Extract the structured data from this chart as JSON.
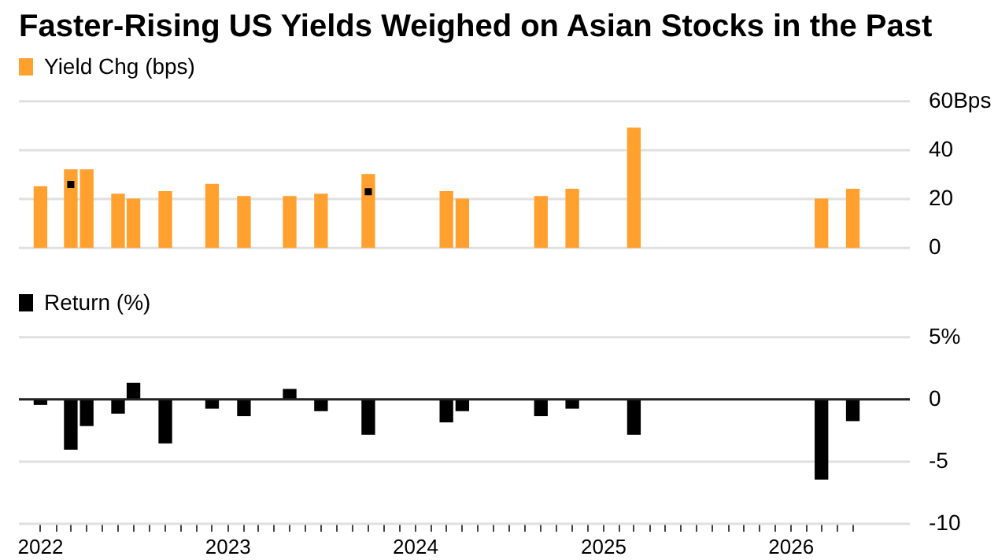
{
  "chart_data": [
    {
      "type": "bar",
      "title": "Faster-Rising US Yields Weighed on Asian Stocks in the Past",
      "x": [
        "2022-01",
        "2022-03",
        "2022-04",
        "2022-06",
        "2022-07",
        "2022-09",
        "2022-12",
        "2023-02",
        "2023-05",
        "2023-07",
        "2023-10",
        "2024-03",
        "2024-04",
        "2024-09",
        "2024-11",
        "2025-03",
        "2026-03",
        "2026-05"
      ],
      "series": [
        {
          "name": "Yield Chg (bps)",
          "color": "#ffa02f",
          "values": [
            25,
            32,
            32,
            22,
            20,
            23,
            26,
            21,
            21,
            22,
            30,
            23,
            20,
            21,
            24,
            49,
            20,
            24
          ]
        },
        {
          "type": "scatter",
          "color": "#000000",
          "values": [
            null,
            26,
            null,
            null,
            null,
            null,
            null,
            null,
            null,
            null,
            23,
            null,
            null,
            null,
            null,
            null,
            null,
            null
          ]
        }
      ],
      "legend": "top left",
      "grid": "y",
      "tick_labels": "y",
      "xlim": [
        "2021-11-20",
        "2026-08-20"
      ],
      "ylim": [
        0,
        60
      ],
      "yticks": [
        0,
        20,
        40,
        {
          "value": 60,
          "label": "60Bps"
        }
      ]
    },
    {
      "type": "bar",
      "x": [
        "2022-01",
        "2022-03",
        "2022-04",
        "2022-06",
        "2022-07",
        "2022-09",
        "2022-12",
        "2023-02",
        "2023-05",
        "2023-07",
        "2023-10",
        "2024-03",
        "2024-04",
        "2024-09",
        "2024-11",
        "2025-03",
        "2026-03",
        "2026-05"
      ],
      "series": [
        {
          "name": "Return (%)",
          "color": "#000000",
          "values": [
            -0.4,
            -4,
            -2.1,
            -1.1,
            1.3,
            -3.5,
            -0.7,
            -1.3,
            0.8,
            -0.9,
            -2.8,
            -1.8,
            -0.9,
            -1.3,
            -0.7,
            -2.8,
            -6.4,
            -1.7
          ]
        }
      ],
      "legend": "top left",
      "grid": "y",
      "ref_lines": [
        {
          "axis": "y",
          "value": 0,
          "color": "#222222"
        }
      ],
      "xlim": [
        "2021-11-20",
        "2026-08-20"
      ],
      "ylim": [
        -10,
        5
      ],
      "yticks": [
        {
          "value": 5,
          "label": "5%"
        },
        0,
        -5,
        -10
      ],
      "xticks": [
        "2022",
        {
          "value": "2022-02",
          "label": null
        },
        {
          "value": "2022-03",
          "label": null
        },
        {
          "value": "2022-04",
          "label": null
        },
        {
          "value": "2022-05",
          "label": null
        },
        {
          "value": "2022-06",
          "label": null
        },
        {
          "value": "2022-07",
          "label": null
        },
        {
          "value": "2022-08",
          "label": null
        },
        {
          "value": "2022-09",
          "label": null
        },
        {
          "value": "2022-10",
          "label": null
        },
        {
          "value": "2022-11",
          "label": null
        },
        {
          "value": "2022-12",
          "label": null
        },
        "2023",
        {
          "value": "2023-02",
          "label": null
        },
        {
          "value": "2023-03",
          "label": null
        },
        {
          "value": "2023-04",
          "label": null
        },
        {
          "value": "2023-05",
          "label": null
        },
        {
          "value": "2023-06",
          "label": null
        },
        {
          "value": "2023-07",
          "label": null
        },
        {
          "value": "2023-08",
          "label": null
        },
        {
          "value": "2023-09",
          "label": null
        },
        {
          "value": "2023-10",
          "label": null
        },
        {
          "value": "2023-11",
          "label": null
        },
        {
          "value": "2023-12",
          "label": null
        },
        "2024",
        {
          "value": "2024-02",
          "label": null
        },
        {
          "value": "2024-03",
          "label": null
        },
        {
          "value": "2024-04",
          "label": null
        },
        {
          "value": "2024-05",
          "label": null
        },
        {
          "value": "2024-06",
          "label": null
        },
        {
          "value": "2024-07",
          "label": null
        },
        {
          "value": "2024-08",
          "label": null
        },
        {
          "value": "2024-09",
          "label": null
        },
        {
          "value": "2024-10",
          "label": null
        },
        {
          "value": "2024-11",
          "label": null
        },
        {
          "value": "2024-12",
          "label": null
        },
        "2025",
        {
          "value": "2025-02",
          "label": null
        },
        {
          "value": "2025-03",
          "label": null
        },
        {
          "value": "2025-04",
          "label": null
        },
        {
          "value": "2025-05",
          "label": null
        },
        {
          "value": "2025-06",
          "label": null
        },
        {
          "value": "2025-07",
          "label": null
        },
        {
          "value": "2025-08",
          "label": null
        },
        {
          "value": "2025-09",
          "label": null
        },
        {
          "value": "2025-10",
          "label": null
        },
        {
          "value": "2025-11",
          "label": null
        },
        {
          "value": "2025-12",
          "label": null
        },
        "2026",
        {
          "value": "2026-02",
          "label": null
        },
        {
          "value": "2026-03",
          "label": null
        },
        {
          "value": "2026-04",
          "label": null
        },
        {
          "value": "2026-05",
          "label": null
        }
      ]
    }
  ]
}
